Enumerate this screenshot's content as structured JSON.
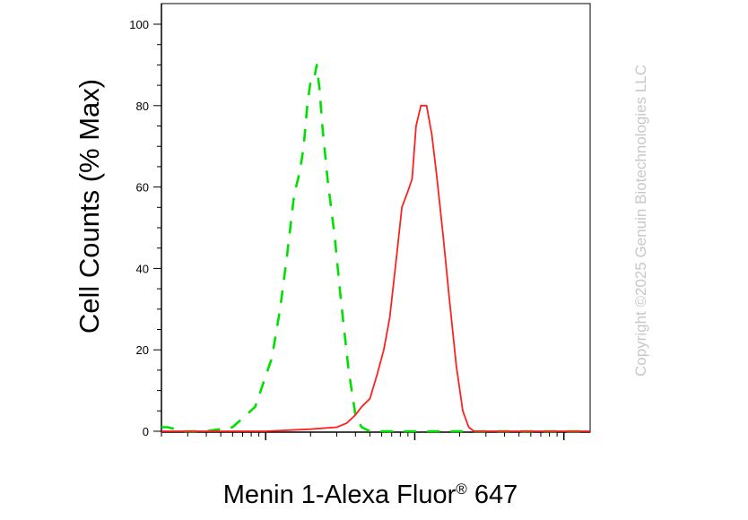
{
  "chart_data": {
    "type": "line",
    "title": "",
    "xlabel": "Menin 1-Alexa Fluor",
    "xlabel_superscript": "®",
    "xlabel_suffix": " 647",
    "ylabel": "Cell Counts (% Max)",
    "x_scale": "log",
    "xlim": [
      200,
      150000
    ],
    "ylim": [
      0,
      105
    ],
    "y_ticks": [
      0,
      20,
      40,
      60,
      80,
      100
    ],
    "y_tick_labels": [
      "0",
      "20",
      "40",
      "60",
      "80",
      "100"
    ],
    "grid": false,
    "legend": "none",
    "series": [
      {
        "color": "#00e000",
        "dash": "dashed",
        "x": [
          200,
          220,
          280,
          400,
          600,
          850,
          1100,
          1250,
          1400,
          1550,
          1700,
          1800,
          1900,
          2000,
          2100,
          2200,
          2300,
          2400,
          2600,
          2900,
          3200,
          3600,
          4000,
          4400,
          5000,
          6000,
          8000,
          20000,
          150000
        ],
        "y": [
          1,
          1,
          0,
          0,
          1,
          6,
          18,
          30,
          44,
          58,
          64,
          70,
          80,
          86,
          86,
          90,
          84,
          75,
          62,
          48,
          32,
          15,
          4,
          1,
          0,
          0,
          0,
          0,
          0
        ]
      },
      {
        "color": "#ff2020",
        "dash": "solid",
        "x": [
          200,
          1000,
          2000,
          3000,
          3500,
          4000,
          4400,
          5000,
          5600,
          6200,
          6800,
          7500,
          8200,
          9000,
          9600,
          10200,
          11000,
          12000,
          13000,
          14000,
          15500,
          17000,
          19000,
          21000,
          23000,
          25000,
          150000
        ],
        "y": [
          0,
          0,
          0.5,
          1,
          2,
          4,
          6,
          8,
          14,
          20,
          28,
          42,
          55,
          59,
          62,
          75,
          80,
          80,
          73,
          63,
          48,
          33,
          16,
          5,
          1,
          0,
          0
        ]
      }
    ]
  },
  "watermark": "Copyright ©2025 Genuin Biotechnologies LLC"
}
